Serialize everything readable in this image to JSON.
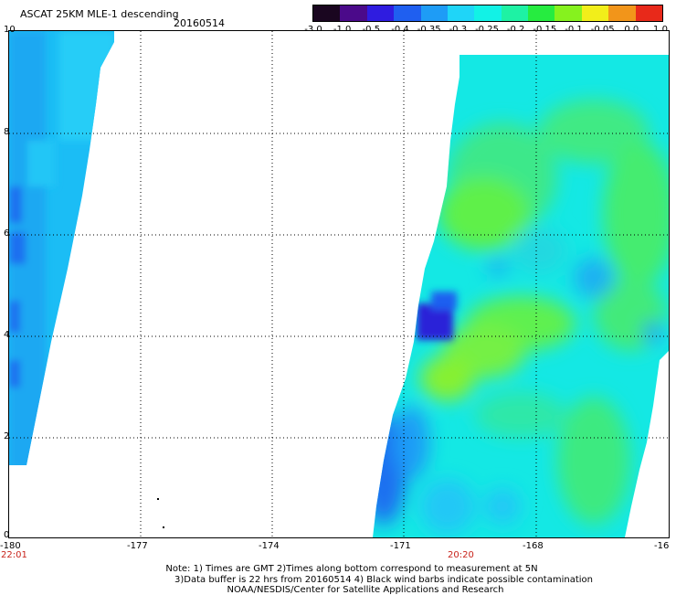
{
  "header": {
    "title": "ASCAT 25KM MLE-1 descending",
    "date": "20160514"
  },
  "colorbar": {
    "labels": [
      "-3.0",
      "-1.0",
      "-0.5",
      "-0.4",
      "-0.35",
      "-0.3",
      "-0.25",
      "-0.2",
      "-0.15",
      "-0.1",
      "-0.05",
      "0.0",
      "1.0"
    ],
    "colors": [
      "#1a0620",
      "#4b0a8a",
      "#2f1ce0",
      "#1f5ff0",
      "#1e9cf6",
      "#1fd5f8",
      "#12f2e6",
      "#1ef2a4",
      "#26ec40",
      "#86f21e",
      "#f2ee1a",
      "#f2951a",
      "#e8291a"
    ]
  },
  "map": {
    "x_ticks": [
      "-180",
      "-177",
      "-174",
      "-171",
      "-168",
      "-16"
    ],
    "y_ticks": [
      "10",
      "8",
      "6",
      "4",
      "2",
      "0"
    ],
    "x_range": [
      -180,
      -161
    ],
    "y_range": [
      0,
      10
    ],
    "gridlines": true
  },
  "times": {
    "left": "22:01",
    "right": "20:20"
  },
  "notes": {
    "line1": "Note: 1) Times are GMT 2)Times along bottom correspond to measurement at 5N",
    "line2": "3)Data buffer is 22 hrs from 20160514 4) Black wind barbs indicate possible contamination",
    "line3": "NOAA/NESDIS/Center for Satellite Applications and Research"
  }
}
